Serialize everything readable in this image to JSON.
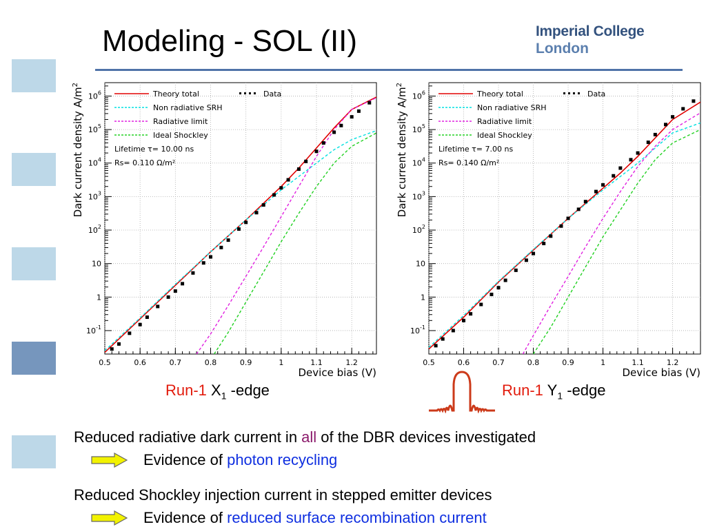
{
  "slide": {
    "title": "Modeling - SOL (II)",
    "logo_line1": "Imperial College",
    "logo_line2": "London"
  },
  "captions": {
    "left": {
      "run": "Run-1",
      "label": "X",
      "sub": "1",
      "suffix": " -edge"
    },
    "right": {
      "run": "Run-1",
      "label": "Y",
      "sub": "1",
      "suffix": " -edge"
    }
  },
  "bullets": [
    {
      "pre": "Reduced radiative dark current in ",
      "highlight": "all",
      "post": " of the DBR devices investigated",
      "evidence_pre": "Evidence of ",
      "evidence_highlight": "photon recycling"
    },
    {
      "text": "Reduced Shockley injection current in stepped emitter devices",
      "evidence_pre": "Evidence of ",
      "evidence_highlight": "reduced surface recombination current"
    }
  ],
  "colors": {
    "theory": "#e00000",
    "srh": "#00e0e0",
    "radiative": "#e020e0",
    "shockley": "#20d020",
    "run_label": "#e21b0c",
    "highlight_all": "#8b1a6b",
    "highlight_blue": "#0f2fe0",
    "square_light": "#bdd8e8",
    "square_dark": "#7696bd",
    "rule": "#4f73a8",
    "arrow_fill": "#f2f200"
  },
  "chart_data": [
    {
      "type": "line",
      "xlabel": "Device bias (V)",
      "ylabel": "Dark current density A/m^2",
      "ylabel_base": "Dark current density A/m",
      "ylabel_sup": "2",
      "xlim": [
        0.5,
        1.27
      ],
      "ylim_log10": [
        -1.7,
        6.4
      ],
      "yscale": "log",
      "grid": true,
      "x_ticks": [
        0.5,
        0.6,
        0.7,
        0.8,
        0.9,
        1,
        1.1,
        1.2
      ],
      "x_tick_labels": [
        "0.5",
        "0.6",
        "0.7",
        "0.8",
        "0.9",
        "1",
        "1.1",
        "1.2"
      ],
      "y_ticks": [
        {
          "exp": -1,
          "base": "10",
          "sup": "-1"
        },
        {
          "exp": 0,
          "base": "1",
          "sup": ""
        },
        {
          "exp": 1,
          "base": "10",
          "sup": ""
        },
        {
          "exp": 2,
          "base": "10",
          "sup": "2"
        },
        {
          "exp": 3,
          "base": "10",
          "sup": "3"
        },
        {
          "exp": 4,
          "base": "10",
          "sup": "4"
        },
        {
          "exp": 5,
          "base": "10",
          "sup": "5"
        },
        {
          "exp": 6,
          "base": "10",
          "sup": "6"
        }
      ],
      "legend": {
        "placement": "top-left",
        "entries": [
          "Theory total",
          "Non radiative SRH",
          "Radiative limit",
          "Ideal Shockley"
        ],
        "data_entry": "Data",
        "lifetime_label": "Lifetime τ=",
        "lifetime_value": "10.00",
        "lifetime_unit": "ns",
        "rs_label": "Rs=",
        "rs_value": "0.110",
        "rs_unit": "Ω/m²"
      },
      "series": [
        {
          "name": "Theory total",
          "style": "solid",
          "x": [
            0.5,
            0.6,
            0.7,
            0.8,
            0.9,
            1.0,
            1.05,
            1.1,
            1.15,
            1.2,
            1.27
          ],
          "log10y": [
            -1.65,
            -0.65,
            0.35,
            1.35,
            2.3,
            3.3,
            3.85,
            4.45,
            5.05,
            5.6,
            5.97
          ]
        },
        {
          "name": "Non radiative SRH",
          "style": "dashed",
          "x": [
            0.5,
            0.6,
            0.7,
            0.8,
            0.9,
            1.0,
            1.05,
            1.1,
            1.15,
            1.2,
            1.27
          ],
          "log10y": [
            -1.6,
            -0.62,
            0.38,
            1.35,
            2.3,
            3.2,
            3.6,
            4.0,
            4.4,
            4.7,
            4.97
          ]
        },
        {
          "name": "Radiative limit",
          "style": "dashed",
          "x": [
            0.76,
            0.8,
            0.85,
            0.9,
            0.95,
            1.0,
            1.05,
            1.1,
            1.15,
            1.2,
            1.27
          ],
          "log10y": [
            -1.7,
            -1.1,
            -0.25,
            0.62,
            1.5,
            2.4,
            3.3,
            4.2,
            5.0,
            5.6,
            5.95
          ]
        },
        {
          "name": "Ideal Shockley",
          "style": "dashed",
          "x": [
            0.81,
            0.85,
            0.9,
            0.95,
            1.0,
            1.05,
            1.1,
            1.15,
            1.2,
            1.27
          ],
          "log10y": [
            -1.7,
            -1.05,
            -0.15,
            0.75,
            1.65,
            2.5,
            3.3,
            4.0,
            4.5,
            4.9
          ]
        },
        {
          "name": "Data",
          "style": "points",
          "x": [
            0.52,
            0.54,
            0.57,
            0.6,
            0.62,
            0.65,
            0.68,
            0.7,
            0.72,
            0.75,
            0.78,
            0.8,
            0.83,
            0.85,
            0.88,
            0.9,
            0.93,
            0.95,
            0.98,
            1.0,
            1.02,
            1.05,
            1.07,
            1.1,
            1.12,
            1.15,
            1.17,
            1.2,
            1.22,
            1.25
          ],
          "log10y": [
            -1.55,
            -1.4,
            -1.08,
            -0.82,
            -0.6,
            -0.28,
            0.0,
            0.18,
            0.4,
            0.72,
            1.02,
            1.2,
            1.48,
            1.7,
            2.03,
            2.23,
            2.52,
            2.75,
            3.05,
            3.26,
            3.5,
            3.82,
            4.05,
            4.35,
            4.6,
            4.92,
            5.12,
            5.38,
            5.55,
            5.8
          ]
        }
      ]
    },
    {
      "type": "line",
      "xlabel": "Device bias (V)",
      "ylabel": "Dark current density A/m^2",
      "ylabel_base": "Dark current density A/m",
      "ylabel_sup": "2",
      "xlim": [
        0.5,
        1.28
      ],
      "ylim_log10": [
        -1.7,
        6.4
      ],
      "yscale": "log",
      "grid": true,
      "x_ticks": [
        0.5,
        0.6,
        0.7,
        0.8,
        0.9,
        1,
        1.1,
        1.2
      ],
      "x_tick_labels": [
        "0.5",
        "0.6",
        "0.7",
        "0.8",
        "0.9",
        "1",
        "1.1",
        "1.2"
      ],
      "y_ticks": [
        {
          "exp": -1,
          "base": "10",
          "sup": "-1"
        },
        {
          "exp": 0,
          "base": "1",
          "sup": ""
        },
        {
          "exp": 1,
          "base": "10",
          "sup": ""
        },
        {
          "exp": 2,
          "base": "10",
          "sup": "2"
        },
        {
          "exp": 3,
          "base": "10",
          "sup": "3"
        },
        {
          "exp": 4,
          "base": "10",
          "sup": "4"
        },
        {
          "exp": 5,
          "base": "10",
          "sup": "5"
        },
        {
          "exp": 6,
          "base": "10",
          "sup": "6"
        }
      ],
      "legend": {
        "placement": "top-left",
        "entries": [
          "Theory total",
          "Non radiative SRH",
          "Radiative limit",
          "Ideal Shockley"
        ],
        "data_entry": "Data",
        "lifetime_label": "Lifetime τ=",
        "lifetime_value": "7.00",
        "lifetime_unit": "ns",
        "rs_label": "Rs=",
        "rs_value": "0.140",
        "rs_unit": "Ω/m²"
      },
      "series": [
        {
          "name": "Theory total",
          "style": "solid",
          "x": [
            0.5,
            0.6,
            0.7,
            0.8,
            0.9,
            1.0,
            1.05,
            1.1,
            1.15,
            1.2,
            1.28
          ],
          "log10y": [
            -1.55,
            -0.6,
            0.45,
            1.4,
            2.35,
            3.25,
            3.7,
            4.2,
            4.75,
            5.3,
            5.82
          ]
        },
        {
          "name": "Non radiative SRH",
          "style": "dashed",
          "x": [
            0.5,
            0.6,
            0.7,
            0.8,
            0.9,
            1.0,
            1.05,
            1.1,
            1.15,
            1.2,
            1.28
          ],
          "log10y": [
            -1.5,
            -0.55,
            0.47,
            1.42,
            2.35,
            3.2,
            3.6,
            4.0,
            4.45,
            4.9,
            5.2
          ]
        },
        {
          "name": "Radiative limit",
          "style": "dashed",
          "x": [
            0.77,
            0.8,
            0.85,
            0.9,
            0.95,
            1.0,
            1.05,
            1.1,
            1.15,
            1.2,
            1.28
          ],
          "log10y": [
            -1.7,
            -1.15,
            -0.25,
            0.62,
            1.5,
            2.35,
            3.15,
            3.9,
            4.5,
            5.0,
            5.5
          ]
        },
        {
          "name": "Ideal Shockley",
          "style": "dashed",
          "x": [
            0.8,
            0.85,
            0.9,
            0.95,
            1.0,
            1.05,
            1.1,
            1.15,
            1.2,
            1.28
          ],
          "log10y": [
            -1.7,
            -0.9,
            0.0,
            0.9,
            1.8,
            2.6,
            3.4,
            4.1,
            4.6,
            5.0
          ]
        },
        {
          "name": "Data",
          "style": "points",
          "x": [
            0.52,
            0.54,
            0.57,
            0.6,
            0.62,
            0.65,
            0.68,
            0.7,
            0.72,
            0.75,
            0.78,
            0.8,
            0.83,
            0.85,
            0.88,
            0.9,
            0.93,
            0.95,
            0.98,
            1.0,
            1.03,
            1.05,
            1.08,
            1.1,
            1.13,
            1.15,
            1.18,
            1.2,
            1.23,
            1.26
          ],
          "log10y": [
            -1.45,
            -1.25,
            -1.0,
            -0.7,
            -0.5,
            -0.22,
            0.08,
            0.28,
            0.5,
            0.8,
            1.1,
            1.3,
            1.6,
            1.82,
            2.12,
            2.35,
            2.62,
            2.85,
            3.15,
            3.35,
            3.62,
            3.85,
            4.1,
            4.3,
            4.62,
            4.85,
            5.15,
            5.38,
            5.62,
            5.85
          ]
        }
      ]
    }
  ]
}
